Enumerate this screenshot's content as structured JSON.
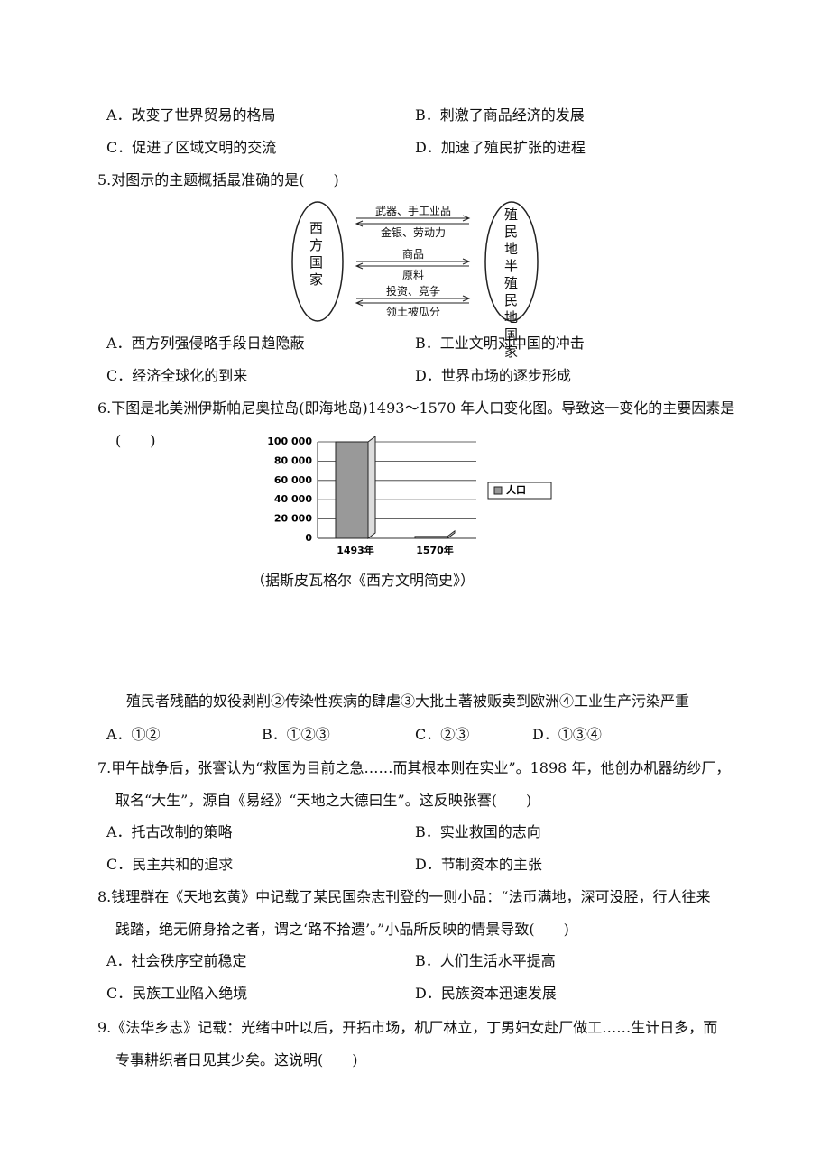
{
  "document": {
    "q4_options": [
      "A．改变了世界贸易的格局",
      "B．刺激了商品经济的发展",
      "C．促进了区域文明的交流",
      "D．加速了殖民扩张的进程"
    ],
    "q5": {
      "lines": [
        "5.对图示的主题概括最准确的是(　　)"
      ],
      "diagram": {
        "left": "西方国家",
        "right": "殖民地半殖民地国家",
        "arrows": [
          "武器、手工业品",
          "金银、劳动力",
          "商品",
          "原料",
          "投资、竞争",
          "领土被瓜分"
        ]
      },
      "options": [
        "A．西方列强侵略手段日趋隐蔽",
        "B．工业文明对中国的冲击",
        "C．经济全球化的到来",
        "D．世界市场的逐步形成"
      ]
    },
    "q6": {
      "lines": [
        "6.下图是北美洲伊斯帕尼奥拉岛(即海地岛)1493～1570 年人口变化图。导致这一变化的主要因素是",
        "(　　)"
      ],
      "source": "（据斯皮瓦格尔《西方文明简史》）",
      "statement": "殖民者残酷的奴役剥削②传染性疾病的肆虐③大批土著被贩卖到欧洲④工业生产污染严重",
      "options": [
        "A．①②",
        "B．①②③",
        "C．②③",
        "D．①③④"
      ]
    },
    "q7": {
      "lines": [
        "7.甲午战争后，张謇认为“救国为目前之急……而其根本则在实业”。1898 年，他创办机器纺纱厂，",
        "取名“大生”，源自《易经》“天地之大德曰生”。这反映张謇(　　)"
      ],
      "options": [
        "A．托古改制的策略",
        "B．实业救国的志向",
        "C．民主共和的追求",
        "D．节制资本的主张"
      ]
    },
    "q8": {
      "lines": [
        "8.钱理群在《天地玄黄》中记载了某民国杂志刊登的一则小品：“法币满地，深可没胫，行人往来",
        "践踏，绝无俯身拾之者，谓之‘路不拾遗’。”小品所反映的情景导致(　　)"
      ],
      "options": [
        "A．社会秩序空前稳定",
        "B．人们生活水平提高",
        "C．民族工业陷入绝境",
        "D．民族资本迅速发展"
      ]
    },
    "q9": {
      "lines": [
        "9.《法华乡志》记载：光绪中叶以后，开拓市场，机厂林立，丁男妇女赴厂做工……生计日多，而",
        "专事耕织者日见其少矣。这说明(　　)"
      ]
    }
  },
  "chart_data": {
    "type": "bar",
    "categories": [
      "1493年",
      "1570年"
    ],
    "series": [
      {
        "name": "人口",
        "color": "#999999",
        "values": [
          100000,
          2000
        ]
      }
    ],
    "ylim": [
      0,
      100000
    ],
    "yticks": [
      0,
      {
        "value": 20000,
        "label": "20 000"
      },
      {
        "value": 40000,
        "label": "40 000"
      },
      {
        "value": 60000,
        "label": "60 000"
      },
      {
        "value": 80000,
        "label": "80 000"
      },
      {
        "value": 100000,
        "label": "100 000"
      }
    ],
    "grid": true
  }
}
